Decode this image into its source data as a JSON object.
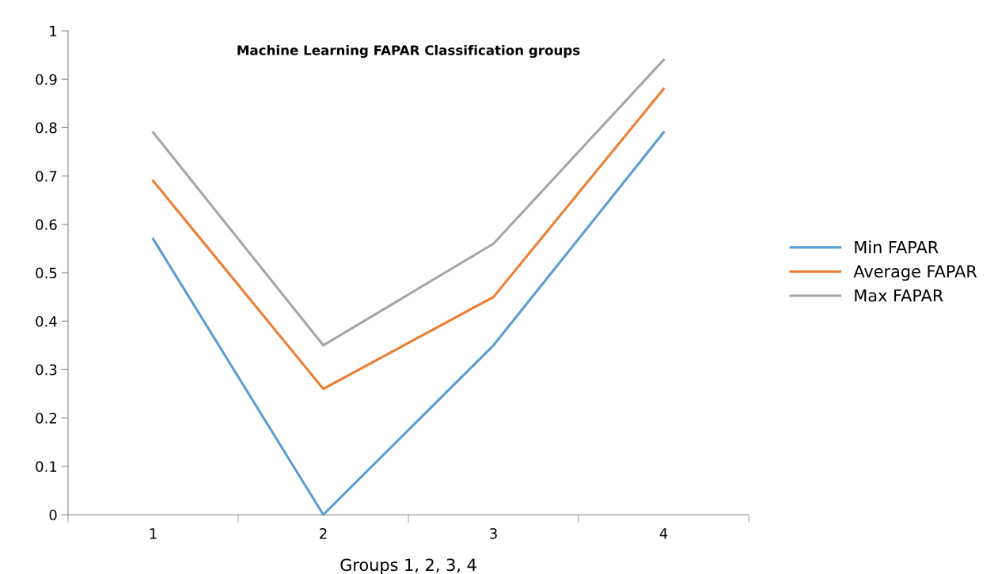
{
  "chart_data": {
    "type": "line",
    "title": "Machine Learning FAPAR Classification groups",
    "xlabel": "Groups 1, 2, 3, 4",
    "categories": [
      "1",
      "2",
      "3",
      "4"
    ],
    "series": [
      {
        "name": "Min FAPAR",
        "color": "#5b9bd5",
        "values": [
          0.57,
          0.0,
          0.35,
          0.79
        ]
      },
      {
        "name": "Average FAPAR",
        "color": "#ed7d31",
        "values": [
          0.69,
          0.26,
          0.45,
          0.88
        ]
      },
      {
        "name": "Max FAPAR",
        "color": "#a5a5a5",
        "values": [
          0.79,
          0.35,
          0.56,
          0.94
        ]
      }
    ],
    "ylim": [
      0,
      1
    ],
    "yticks": [
      0,
      0.1,
      0.2,
      0.3,
      0.4,
      0.5,
      0.6,
      0.7,
      0.8,
      0.9,
      1
    ],
    "grid": false,
    "legend": "right",
    "marker": "none",
    "line_style": "solid"
  }
}
